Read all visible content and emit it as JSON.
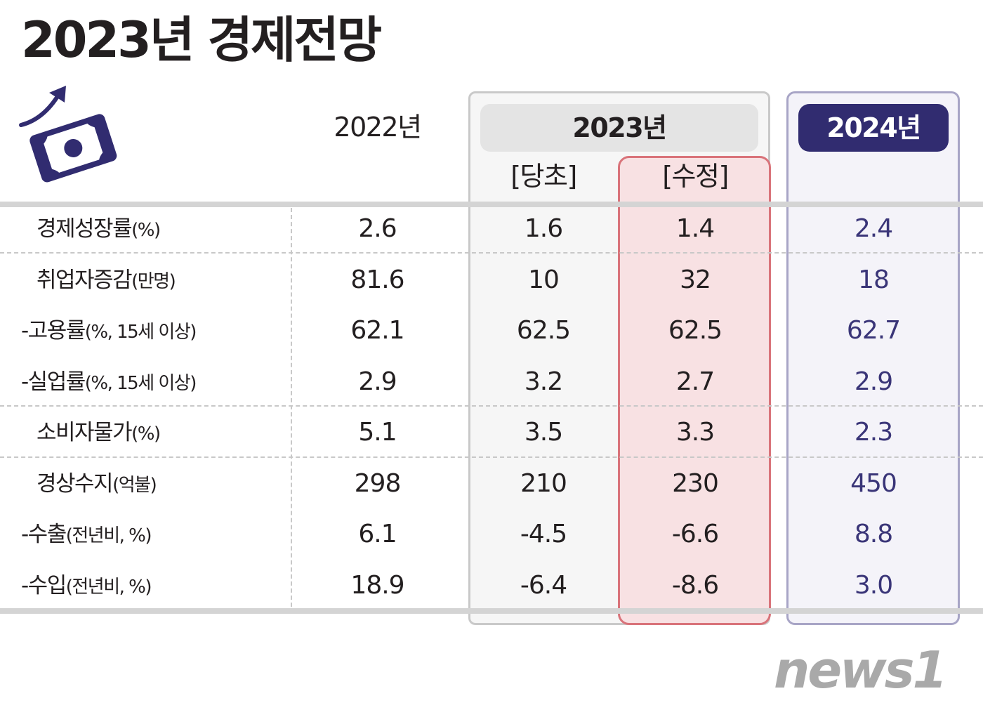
{
  "title": "2023년 경제전망",
  "icon": "money-rising-icon",
  "colors": {
    "text": "#231f20",
    "accent_2024": "#312c70",
    "revised_fill": "#f8e1e3",
    "revised_border": "#d9737a",
    "frame_gray": "#c9c9c9",
    "watermark": "#a9a9a9"
  },
  "chart_data": {
    "type": "table",
    "column_headers": {
      "y2022": "2022년",
      "y2023": "2023년",
      "y2023_initial": "[당초]",
      "y2023_revised": "[수정]",
      "y2024": "2024년"
    },
    "rows": [
      {
        "label": "경제성장률",
        "unit": "(%)",
        "y2022": "2.6",
        "y2023_initial": "1.6",
        "y2023_revised": "1.4",
        "y2024": "2.4"
      },
      {
        "label": "취업자증감",
        "unit": "(만명)",
        "y2022": "81.6",
        "y2023_initial": "10",
        "y2023_revised": "32",
        "y2024": "18"
      },
      {
        "label": "-고용률",
        "unit": "(%, 15세 이상)",
        "y2022": "62.1",
        "y2023_initial": "62.5",
        "y2023_revised": "62.5",
        "y2024": "62.7"
      },
      {
        "label": "-실업률",
        "unit": "(%, 15세 이상)",
        "y2022": "2.9",
        "y2023_initial": "3.2",
        "y2023_revised": "2.7",
        "y2024": "2.9"
      },
      {
        "label": "소비자물가",
        "unit": "(%)",
        "y2022": "5.1",
        "y2023_initial": "3.5",
        "y2023_revised": "3.3",
        "y2024": "2.3"
      },
      {
        "label": "경상수지",
        "unit": "(억불)",
        "y2022": "298",
        "y2023_initial": "210",
        "y2023_revised": "230",
        "y2024": "450"
      },
      {
        "label": "-수출",
        "unit": "(전년비, %)",
        "y2022": "6.1",
        "y2023_initial": "-4.5",
        "y2023_revised": "-6.6",
        "y2024": "8.8"
      },
      {
        "label": "-수입",
        "unit": "(전년비, %)",
        "y2022": "18.9",
        "y2023_initial": "-6.4",
        "y2023_revised": "-8.6",
        "y2024": "3.0"
      }
    ]
  },
  "watermark": {
    "logo_text": "news1",
    "icon": "news1-logo-icon"
  }
}
